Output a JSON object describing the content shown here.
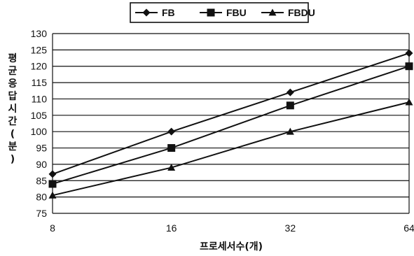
{
  "chart_data": {
    "type": "line",
    "categories": [
      "8",
      "16",
      "32",
      "64"
    ],
    "xlabel": "프로세서수(개)",
    "ylabel": "평균응답시간(분)",
    "ylim": [
      75,
      130
    ],
    "yticks": [
      75,
      80,
      85,
      90,
      95,
      100,
      105,
      110,
      115,
      120,
      125,
      130
    ],
    "grid": true,
    "legend_position": "top",
    "series": [
      {
        "name": "FB",
        "marker": "diamond",
        "values": [
          87,
          100,
          112,
          124
        ]
      },
      {
        "name": "FBU",
        "marker": "square",
        "values": [
          84,
          95,
          108,
          120
        ]
      },
      {
        "name": "FBDU",
        "marker": "triangle",
        "values": [
          80.5,
          89,
          100,
          109
        ]
      }
    ],
    "colors": {
      "line": "#111111",
      "grid": "#111111",
      "background": "#ffffff"
    }
  }
}
